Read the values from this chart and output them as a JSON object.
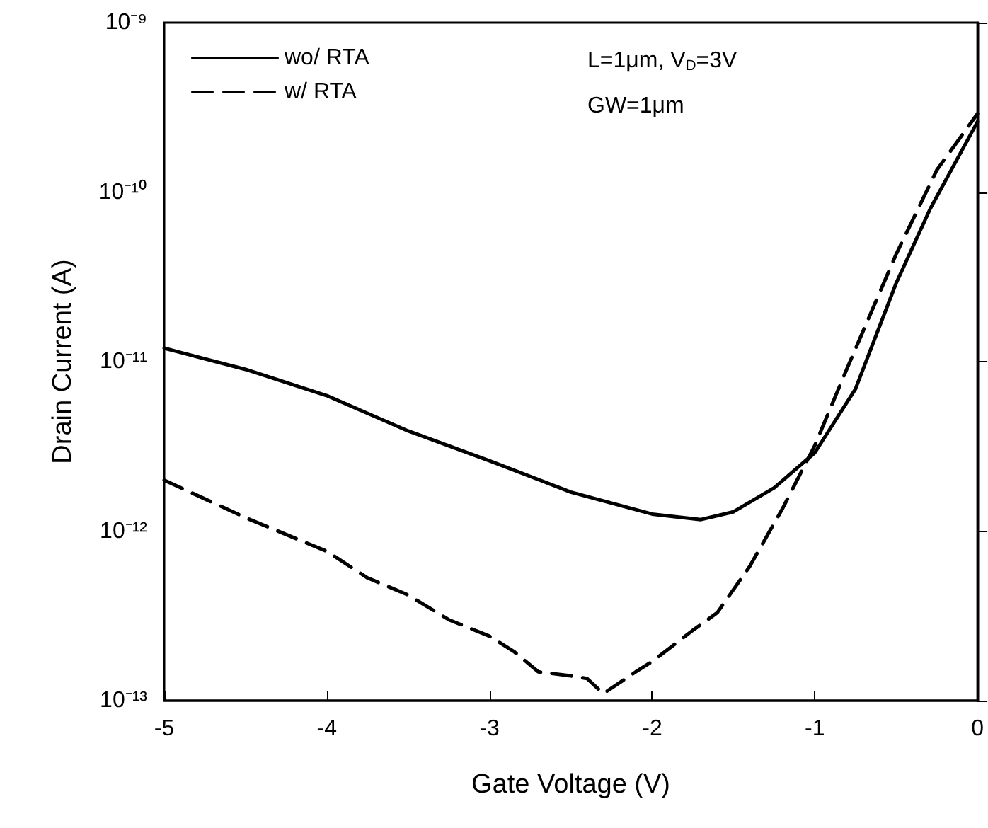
{
  "chart_data": {
    "type": "line",
    "xlabel": "Gate Voltage (V)",
    "ylabel": "Drain Current (A)",
    "xlim": [
      -5,
      0
    ],
    "xticks": [
      -5,
      -4,
      -3,
      -2,
      -1,
      0
    ],
    "ylim": [
      1e-13,
      1e-09
    ],
    "log": "y",
    "yticks": [
      {
        "value": 1e-13,
        "label": "10⁻¹³"
      },
      {
        "value": 1e-12,
        "label": "10⁻¹²"
      },
      {
        "value": 1e-11,
        "label": "10⁻¹¹"
      },
      {
        "value": 1e-10,
        "label": "10⁻¹⁰"
      },
      {
        "value": 1e-09,
        "label": "10⁻⁹"
      }
    ],
    "grid": false,
    "legend": "top left",
    "marker": "none",
    "annotations": [
      "L=1μm, V$_{D}$=3V",
      "GW=1μm"
    ],
    "series": [
      {
        "name": "wo/ RTA",
        "color": "#000000",
        "line_style": "solid",
        "x": [
          -5,
          -4.5,
          -4,
          -3.5,
          -3,
          -2.5,
          -2,
          -1.7,
          -1.5,
          -1.25,
          -1,
          -0.75,
          -0.5,
          -0.29,
          0
        ],
        "values": [
          1.2e-11,
          9e-12,
          6.3e-12,
          3.9e-12,
          2.6e-12,
          1.7e-12,
          1.26e-12,
          1.17e-12,
          1.3e-12,
          1.8e-12,
          2.9e-12,
          6.9e-12,
          2.9e-11,
          8e-11,
          2.6e-10
        ]
      },
      {
        "name": "w/ RTA",
        "color": "#000000",
        "line_style": "dashed",
        "x": [
          -5,
          -4.5,
          -4,
          -3.75,
          -3.5,
          -3.25,
          -3,
          -2.85,
          -2.7,
          -2.5,
          -2.4,
          -2.3,
          -2.1,
          -2,
          -1.75,
          -1.6,
          -1.4,
          -1.2,
          -1,
          -0.8,
          -0.5,
          -0.25,
          0
        ],
        "values": [
          2e-12,
          1.2e-12,
          7.6e-13,
          5.3e-13,
          4.2e-13,
          3e-13,
          2.4e-13,
          1.95e-13,
          1.48e-13,
          1.4e-13,
          1.35e-13,
          1.1e-13,
          1.48e-13,
          1.7e-13,
          2.6e-13,
          3.3e-13,
          6.2e-13,
          1.35e-12,
          3.2e-12,
          9.2e-12,
          4.3e-11,
          1.35e-10,
          2.9e-10
        ]
      }
    ]
  }
}
